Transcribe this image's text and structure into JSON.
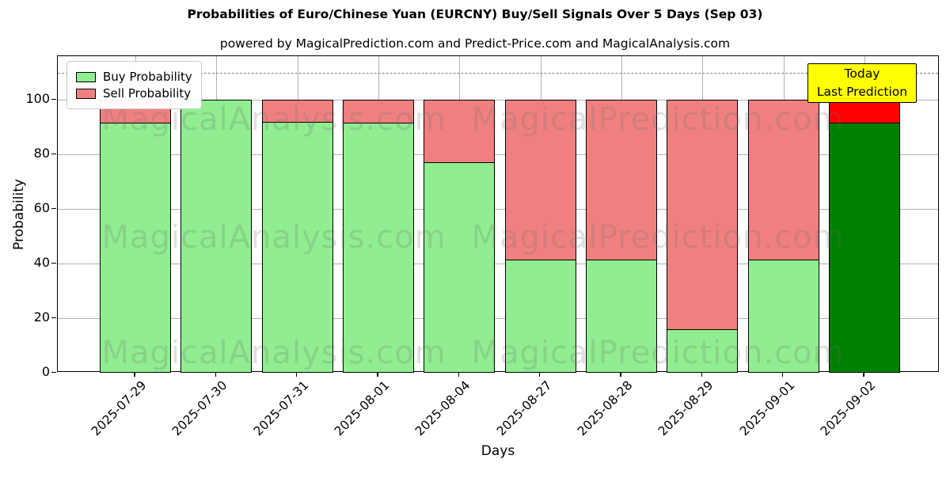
{
  "title": "Probabilities of Euro/Chinese Yuan (EURCNY) Buy/Sell Signals Over 5 Days (Sep 03)",
  "subtitle": "powered by MagicalPrediction.com and Predict-Price.com and MagicalAnalysis.com",
  "chart_data": {
    "type": "bar",
    "stacked": true,
    "title": "Probabilities of Euro/Chinese Yuan (EURCNY) Buy/Sell Signals Over 5 Days (Sep 03)",
    "xlabel": "Days",
    "ylabel": "Probability",
    "categories": [
      "2025-07-29",
      "2025-07-30",
      "2025-07-31",
      "2025-08-01",
      "2025-08-04",
      "2025-08-27",
      "2025-08-28",
      "2025-08-29",
      "2025-09-01",
      "2025-09-02"
    ],
    "series": [
      {
        "name": "Buy Probability",
        "color": "#90ee90",
        "values": [
          91.5,
          100,
          92,
          91.5,
          77,
          41.5,
          41.5,
          16,
          41.5,
          91.5
        ]
      },
      {
        "name": "Sell Probability",
        "color": "#f08080",
        "values": [
          8.5,
          0,
          8,
          8.5,
          23,
          58.5,
          58.5,
          84,
          58.5,
          8.5
        ]
      }
    ],
    "today_index": 9,
    "today_colors": {
      "buy": "#008000",
      "sell": "#ff0000"
    },
    "ylim": [
      0,
      116
    ],
    "yticks": [
      0,
      20,
      40,
      60,
      80,
      100
    ],
    "dashed_line_y": 110,
    "grid": true,
    "legend_position": "upper left",
    "bar_edge_color": "#000000",
    "annotation": {
      "lines": [
        "Today",
        "Last Prediction"
      ],
      "bg": "#ffff00"
    },
    "watermarks": [
      "MagicalAnalysis.com",
      "MagicalPrediction.com"
    ]
  }
}
